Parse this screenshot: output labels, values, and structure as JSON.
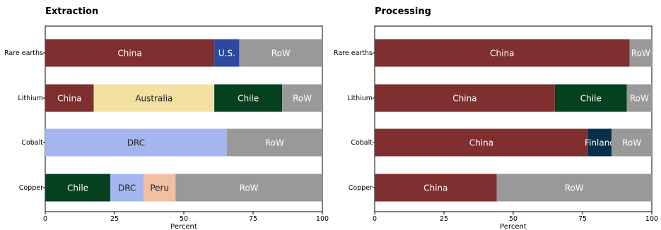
{
  "chart_data": [
    {
      "type": "bar",
      "orientation": "horizontal",
      "stacked": true,
      "title": "Extraction",
      "xlabel": "Percent",
      "xlim": [
        0,
        100
      ],
      "xticks": [
        "0",
        "25",
        "50",
        "75",
        "100"
      ],
      "grid": false,
      "categories": [
        "Rare earths",
        "Lithium",
        "Cobalt",
        "Copper"
      ],
      "bars": [
        {
          "category": "Rare earths",
          "segments": [
            {
              "label": "China",
              "value": 61,
              "color": "#7f2f2f"
            },
            {
              "label": "U.S.",
              "value": 9,
              "color": "#2e48a0"
            },
            {
              "label": "RoW",
              "value": 30,
              "color": "#999999"
            }
          ]
        },
        {
          "category": "Lithium",
          "segments": [
            {
              "label": "China",
              "value": 17.5,
              "color": "#7f2f2f"
            },
            {
              "label": "Australia",
              "value": 43.5,
              "color": "#f3e0a3"
            },
            {
              "label": "Chile",
              "value": 24.5,
              "color": "#05401f"
            },
            {
              "label": "RoW",
              "value": 14.5,
              "color": "#999999"
            }
          ]
        },
        {
          "category": "Cobalt",
          "segments": [
            {
              "label": "DRC",
              "value": 65.5,
              "color": "#a3b6f0"
            },
            {
              "label": "RoW",
              "value": 34.5,
              "color": "#999999"
            }
          ]
        },
        {
          "category": "Copper",
          "segments": [
            {
              "label": "Chile",
              "value": 23.5,
              "color": "#05401f"
            },
            {
              "label": "DRC",
              "value": 12,
              "color": "#a3b6f0"
            },
            {
              "label": "Peru",
              "value": 11.5,
              "color": "#f1bfa1"
            },
            {
              "label": "RoW",
              "value": 53,
              "color": "#999999"
            }
          ]
        }
      ]
    },
    {
      "type": "bar",
      "orientation": "horizontal",
      "stacked": true,
      "title": "Processing",
      "xlabel": "Percent",
      "xlim": [
        0,
        100
      ],
      "xticks": [
        "0",
        "25",
        "50",
        "75",
        "100"
      ],
      "grid": false,
      "categories": [
        "Rare earths",
        "Lithium",
        "Cobalt",
        "Copper"
      ],
      "bars": [
        {
          "category": "Rare earths",
          "segments": [
            {
              "label": "China",
              "value": 92,
              "color": "#7f2f2f"
            },
            {
              "label": "RoW",
              "value": 8,
              "color": "#999999"
            }
          ]
        },
        {
          "category": "Lithium",
          "segments": [
            {
              "label": "China",
              "value": 65,
              "color": "#7f2f2f"
            },
            {
              "label": "Chile",
              "value": 26,
              "color": "#05401f"
            },
            {
              "label": "RoW",
              "value": 9,
              "color": "#999999"
            }
          ]
        },
        {
          "category": "Cobalt",
          "segments": [
            {
              "label": "China",
              "value": 77,
              "color": "#7f2f2f"
            },
            {
              "label": "Finland",
              "value": 8.5,
              "color": "#052f4a"
            },
            {
              "label": "RoW",
              "value": 14.5,
              "color": "#999999"
            }
          ]
        },
        {
          "category": "Copper",
          "segments": [
            {
              "label": "China",
              "value": 44,
              "color": "#7f2f2f"
            },
            {
              "label": "RoW",
              "value": 56,
              "color": "#999999"
            }
          ]
        }
      ]
    }
  ]
}
